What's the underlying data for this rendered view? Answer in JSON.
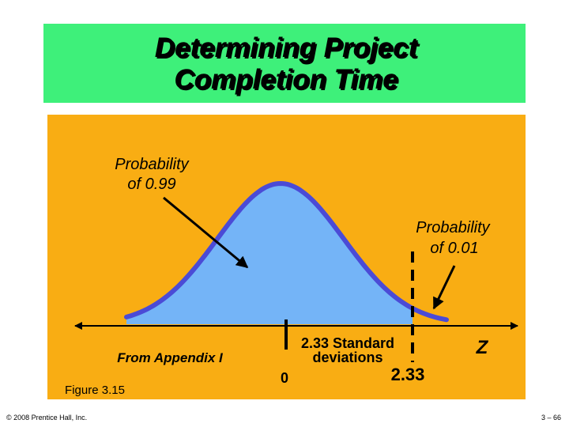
{
  "title": [
    "Determining Project",
    "Completion Time"
  ],
  "labels": {
    "left_prob": [
      "Probability",
      "of 0.99"
    ],
    "right_prob": [
      "Probability",
      "of 0.01"
    ],
    "appendix": "From Appendix I",
    "figure": "Figure 3.15",
    "zero": "0",
    "std_dev": [
      "2.33 Standard",
      "deviations"
    ],
    "z_value": "2.33",
    "z_axis": "Z"
  },
  "footer": {
    "copyright": "© 2008 Prentice Hall, Inc.",
    "page": "3 – 66"
  }
}
